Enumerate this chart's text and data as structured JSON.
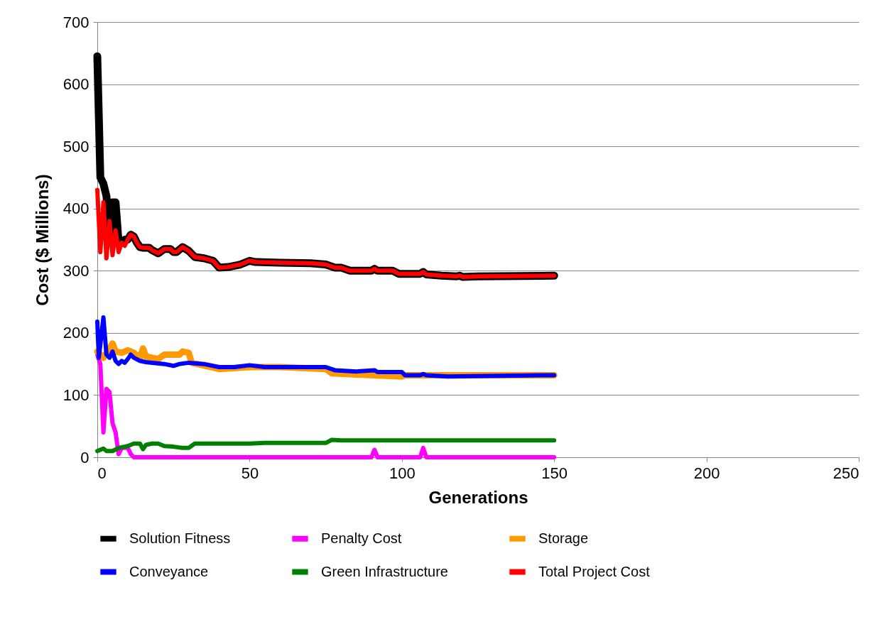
{
  "chart_data": {
    "type": "line",
    "xlabel": "Generations",
    "ylabel": "Cost ($ Millions)",
    "xlim": [
      0,
      250
    ],
    "xticks": [
      0,
      50,
      100,
      150,
      200,
      250
    ],
    "ylim": [
      0,
      700
    ],
    "yticks": [
      0,
      100,
      200,
      300,
      400,
      500,
      600,
      700
    ],
    "grid": "y",
    "legend": "bottom",
    "marker": "none",
    "line_style": "solid",
    "series": [
      {
        "name": "Solution Fitness",
        "color": "#000000",
        "x": [
          0,
          1,
          2,
          3,
          4,
          5,
          6,
          7,
          8,
          9,
          10,
          11,
          12,
          13,
          14,
          15,
          17,
          18,
          20,
          22,
          24,
          25,
          26,
          28,
          30,
          32,
          35,
          38,
          40,
          43,
          47,
          50,
          52,
          60,
          70,
          75,
          78,
          80,
          83,
          90,
          91,
          92,
          97,
          99,
          106,
          107,
          108,
          113,
          118,
          119,
          120,
          125,
          150
        ],
        "values": [
          645,
          450,
          440,
          420,
          360,
          410,
          410,
          345,
          345,
          350,
          350,
          358,
          355,
          345,
          338,
          337,
          337,
          333,
          328,
          335,
          335,
          330,
          330,
          338,
          332,
          322,
          320,
          316,
          305,
          306,
          310,
          316,
          314,
          313,
          312,
          310,
          305,
          305,
          300,
          300,
          303,
          300,
          300,
          295,
          295,
          298,
          294,
          292,
          291,
          292,
          290,
          291,
          292
        ]
      },
      {
        "name": "Penalty Cost",
        "color": "#ff00ff",
        "x": [
          0,
          1,
          2,
          3,
          4,
          5,
          6,
          7,
          8,
          10,
          11,
          12,
          90,
          91,
          92,
          106,
          107,
          108,
          150
        ],
        "values": [
          165,
          150,
          40,
          110,
          105,
          55,
          40,
          5,
          15,
          15,
          5,
          0,
          0,
          12,
          0,
          0,
          15,
          0,
          0
        ]
      },
      {
        "name": "Storage",
        "color": "#ff9900",
        "x": [
          0,
          1,
          2,
          4,
          5,
          6,
          8,
          10,
          12,
          14,
          15,
          16,
          18,
          20,
          22,
          25,
          27,
          28,
          30,
          31,
          40,
          50,
          60,
          75,
          77,
          85,
          100,
          101,
          150
        ],
        "values": [
          170,
          165,
          160,
          175,
          183,
          170,
          168,
          172,
          168,
          160,
          175,
          162,
          160,
          158,
          165,
          165,
          165,
          170,
          168,
          152,
          142,
          145,
          145,
          142,
          135,
          133,
          130,
          132,
          132
        ]
      },
      {
        "name": "Conveyance",
        "color": "#0000ff",
        "x": [
          0,
          0.5,
          2,
          3,
          4,
          5,
          6,
          7,
          8,
          9,
          10,
          11,
          12,
          14,
          16,
          18,
          22,
          25,
          27,
          30,
          35,
          40,
          45,
          50,
          55,
          75,
          78,
          85,
          91,
          92,
          100,
          101,
          106,
          107,
          108,
          115,
          150
        ],
        "values": [
          218,
          160,
          225,
          165,
          160,
          170,
          155,
          150,
          155,
          152,
          158,
          165,
          160,
          155,
          153,
          152,
          150,
          147,
          150,
          152,
          150,
          145,
          145,
          148,
          145,
          145,
          140,
          138,
          140,
          137,
          137,
          132,
          132,
          134,
          132,
          130,
          132
        ]
      },
      {
        "name": "Green Infrastructure",
        "color": "#008000",
        "x": [
          0,
          1,
          2,
          3,
          5,
          7,
          10,
          12,
          14,
          15,
          16,
          18,
          20,
          22,
          25,
          28,
          30,
          32,
          50,
          55,
          75,
          77,
          80,
          150
        ],
        "values": [
          10,
          12,
          14,
          10,
          10,
          15,
          18,
          22,
          22,
          13,
          20,
          22,
          22,
          18,
          17,
          15,
          15,
          22,
          22,
          23,
          23,
          28,
          27,
          27
        ]
      },
      {
        "name": "Total Project Cost",
        "color": "#ff0000",
        "x": [
          0,
          1,
          2,
          3,
          4,
          5,
          6,
          7,
          8,
          9,
          10,
          11,
          12,
          13,
          14,
          15,
          17,
          18,
          20,
          22,
          24,
          25,
          26,
          28,
          30,
          32,
          35,
          38,
          40,
          43,
          47,
          50,
          52,
          60,
          70,
          75,
          78,
          80,
          83,
          90,
          91,
          92,
          97,
          99,
          106,
          107,
          108,
          113,
          118,
          119,
          120,
          125,
          150
        ],
        "values": [
          430,
          330,
          410,
          320,
          380,
          325,
          365,
          330,
          345,
          340,
          350,
          358,
          355,
          345,
          338,
          337,
          337,
          333,
          328,
          335,
          335,
          330,
          330,
          338,
          332,
          322,
          320,
          316,
          305,
          306,
          310,
          316,
          314,
          313,
          312,
          310,
          305,
          305,
          300,
          300,
          303,
          300,
          300,
          295,
          295,
          298,
          294,
          292,
          291,
          292,
          290,
          291,
          292
        ]
      }
    ]
  }
}
